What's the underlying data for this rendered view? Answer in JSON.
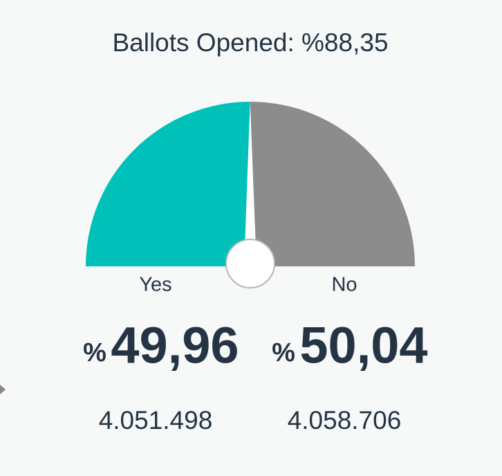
{
  "chart_data": {
    "type": "gauge",
    "title": "Ballots Opened: %88,35",
    "categories": [
      "Yes",
      "No"
    ],
    "values": [
      49.96,
      50.04
    ],
    "value_labels": [
      "49,96",
      "50,04"
    ],
    "percent_sign": "%",
    "counts": [
      4051498,
      4058706
    ],
    "count_labels": [
      "4.051.498",
      "4.058.706"
    ],
    "colors": [
      "#00c1b9",
      "#8c8c8c"
    ]
  }
}
